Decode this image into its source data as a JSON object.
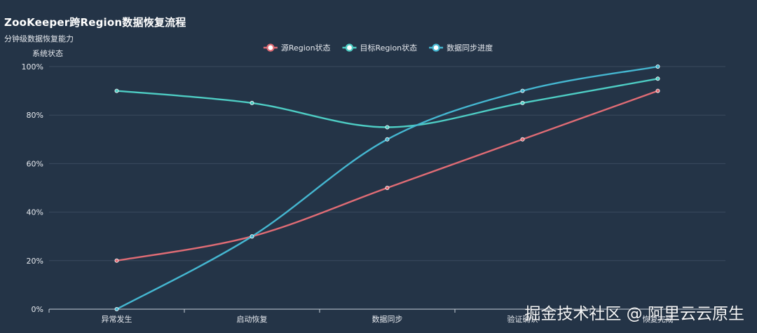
{
  "chart_data": {
    "type": "line",
    "title": "ZooKeeper跨Region数据恢复流程",
    "subtitle": "分钟级数据恢复能力",
    "ylabel": "系统状态",
    "categories": [
      "异常发生",
      "启动恢复",
      "数据同步",
      "验证确认",
      "恢复完成"
    ],
    "y_ticks": [
      "0%",
      "20%",
      "40%",
      "60%",
      "80%",
      "100%"
    ],
    "ylim": [
      0,
      100
    ],
    "grid": true,
    "legend_position": "top-center",
    "series": [
      {
        "name": "源Region状态",
        "color": "#e06c75",
        "values": [
          20,
          30,
          50,
          70,
          90
        ]
      },
      {
        "name": "目标Region状态",
        "color": "#4ecdc4",
        "values": [
          90,
          85,
          75,
          85,
          95
        ]
      },
      {
        "name": "数据同步进度",
        "color": "#45b7d1",
        "values": [
          0,
          30,
          70,
          90,
          100
        ]
      }
    ]
  },
  "watermark": "掘金技术社区 @ 阿里云云原生"
}
